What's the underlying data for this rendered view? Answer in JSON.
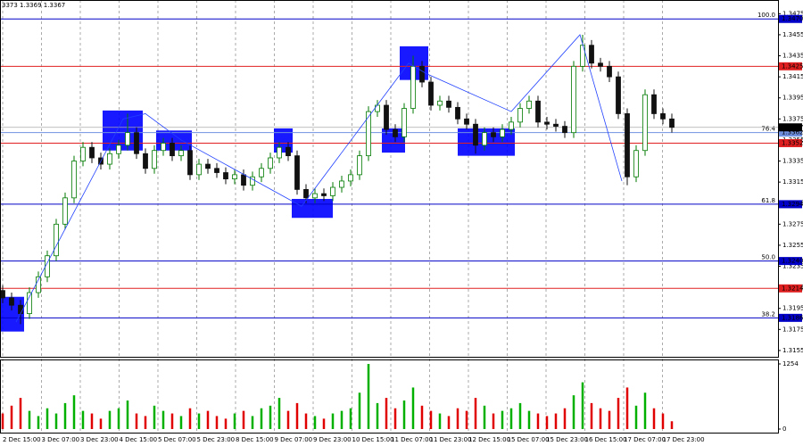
{
  "chart_data": {
    "type": "candlestick",
    "header_text": "3373 1.3369 1.3367",
    "open": [
      1.3212,
      1.3205,
      1.3198,
      1.319,
      1.321,
      1.3225,
      1.3245,
      1.3275,
      1.33,
      1.3335,
      1.3348,
      1.3338,
      1.3332,
      1.3342,
      1.335,
      1.3362,
      1.3342,
      1.3328,
      1.3345,
      1.3352,
      1.334,
      1.3345,
      1.3322,
      1.3332,
      1.3328,
      1.3324,
      1.3318,
      1.3322,
      1.3312,
      1.332,
      1.3328,
      1.3338,
      1.3348,
      1.334,
      1.3308,
      1.33,
      1.3304,
      1.3302,
      1.331,
      1.3316,
      1.3322,
      1.334,
      1.3382,
      1.3388,
      1.3365,
      1.3358,
      1.3385,
      1.3425,
      1.341,
      1.3388,
      1.3392,
      1.3386,
      1.3375,
      1.337,
      1.335,
      1.3362,
      1.3358,
      1.3365,
      1.3372,
      1.3385,
      1.3392,
      1.3372,
      1.337,
      1.3368,
      1.3362,
      1.3425,
      1.3445,
      1.3428,
      1.3425,
      1.3415,
      1.338,
      1.332,
      1.3345,
      1.3398,
      1.338,
      1.3375
    ],
    "high": [
      1.3217,
      1.321,
      1.3203,
      1.3215,
      1.323,
      1.325,
      1.328,
      1.3305,
      1.334,
      1.3353,
      1.3353,
      1.3343,
      1.3347,
      1.3355,
      1.338,
      1.3367,
      1.3347,
      1.335,
      1.3357,
      1.3357,
      1.335,
      1.335,
      1.3337,
      1.3337,
      1.3333,
      1.3329,
      1.3327,
      1.3327,
      1.3325,
      1.3333,
      1.3343,
      1.3353,
      1.3353,
      1.3345,
      1.3313,
      1.3309,
      1.3309,
      1.3315,
      1.3321,
      1.3327,
      1.3345,
      1.3387,
      1.3393,
      1.3393,
      1.337,
      1.339,
      1.3435,
      1.343,
      1.3415,
      1.3397,
      1.3397,
      1.3391,
      1.338,
      1.3375,
      1.3367,
      1.3367,
      1.337,
      1.3377,
      1.339,
      1.3397,
      1.3397,
      1.3377,
      1.3375,
      1.3373,
      1.343,
      1.3455,
      1.345,
      1.3433,
      1.343,
      1.342,
      1.3385,
      1.335,
      1.3403,
      1.3403,
      1.3385,
      1.338
    ],
    "low": [
      1.32,
      1.3193,
      1.318,
      1.3185,
      1.3205,
      1.322,
      1.324,
      1.327,
      1.3295,
      1.333,
      1.3333,
      1.3327,
      1.3327,
      1.3337,
      1.3345,
      1.3337,
      1.3323,
      1.3323,
      1.334,
      1.3335,
      1.3335,
      1.3317,
      1.3317,
      1.3323,
      1.3319,
      1.3313,
      1.3313,
      1.3307,
      1.3307,
      1.3315,
      1.3323,
      1.3333,
      1.3335,
      1.3303,
      1.3295,
      1.3295,
      1.3297,
      1.3297,
      1.3305,
      1.3311,
      1.3317,
      1.3335,
      1.3377,
      1.336,
      1.3353,
      1.3353,
      1.338,
      1.3405,
      1.3383,
      1.3383,
      1.3381,
      1.337,
      1.3365,
      1.3342,
      1.3345,
      1.3353,
      1.3353,
      1.336,
      1.3367,
      1.338,
      1.3367,
      1.3365,
      1.3363,
      1.3357,
      1.3357,
      1.342,
      1.3423,
      1.342,
      1.341,
      1.3375,
      1.3312,
      1.3315,
      1.334,
      1.3375,
      1.337,
      1.3362
    ],
    "close": [
      1.3205,
      1.3198,
      1.319,
      1.321,
      1.3225,
      1.3245,
      1.3275,
      1.33,
      1.3335,
      1.3348,
      1.3338,
      1.3332,
      1.3342,
      1.335,
      1.3362,
      1.3342,
      1.3328,
      1.3345,
      1.3352,
      1.334,
      1.3345,
      1.3322,
      1.3332,
      1.3328,
      1.3324,
      1.3318,
      1.3322,
      1.3312,
      1.332,
      1.3328,
      1.3338,
      1.3348,
      1.334,
      1.3308,
      1.33,
      1.3304,
      1.3302,
      1.331,
      1.3316,
      1.3322,
      1.334,
      1.3382,
      1.3388,
      1.3365,
      1.3358,
      1.3385,
      1.3425,
      1.341,
      1.3388,
      1.3392,
      1.3386,
      1.3375,
      1.337,
      1.335,
      1.3362,
      1.3358,
      1.3365,
      1.3372,
      1.3385,
      1.3392,
      1.3372,
      1.337,
      1.3368,
      1.3362,
      1.3425,
      1.3445,
      1.3428,
      1.3425,
      1.3415,
      1.338,
      1.332,
      1.3345,
      1.3398,
      1.338,
      1.3375,
      1.3367
    ],
    "volume": [
      300,
      450,
      600,
      350,
      250,
      400,
      300,
      500,
      650,
      350,
      300,
      200,
      350,
      400,
      550,
      300,
      250,
      450,
      350,
      300,
      250,
      400,
      300,
      350,
      250,
      200,
      300,
      350,
      250,
      400,
      450,
      600,
      350,
      500,
      300,
      250,
      200,
      300,
      350,
      400,
      700,
      1254,
      500,
      600,
      400,
      550,
      800,
      450,
      350,
      300,
      250,
      400,
      350,
      600,
      450,
      300,
      350,
      400,
      500,
      350,
      300,
      250,
      300,
      400,
      650,
      900,
      500,
      400,
      350,
      600,
      800,
      450,
      700,
      400,
      300,
      150
    ],
    "up_color": "#007a00",
    "down_color": "#111111",
    "volume_up_color": "#00b000",
    "volume_down_color": "#e00000",
    "ylim": [
      1.3149,
      1.3488
    ],
    "yticks": [
      1.3475,
      1.3455,
      1.3435,
      1.3415,
      1.3395,
      1.3375,
      1.3355,
      1.3335,
      1.3315,
      1.3295,
      1.3275,
      1.3255,
      1.3235,
      1.3215,
      1.3195,
      1.3175,
      1.3155
    ],
    "vlim": [
      0,
      1254
    ],
    "vticks": [
      1254,
      0
    ],
    "xlim": [
      -0.3,
      86.9
    ],
    "xticks": [
      {
        "value": 0,
        "label": "2 Dec 15:00"
      },
      {
        "value": 4.35,
        "label": "3 Dec 07:00"
      },
      {
        "value": 8.7,
        "label": "3 Dec 23:00"
      },
      {
        "value": 13.05,
        "label": "4 Dec 15:00"
      },
      {
        "value": 17.4,
        "label": "5 Dec 07:00"
      },
      {
        "value": 21.75,
        "label": "5 Dec 23:00"
      },
      {
        "value": 26.1,
        "label": "8 Dec 15:00"
      },
      {
        "value": 30.45,
        "label": "9 Dec 07:00"
      },
      {
        "value": 34.8,
        "label": "9 Dec 23:00"
      },
      {
        "value": 39.15,
        "label": "10 Dec 15:00"
      },
      {
        "value": 43.5,
        "label": "11 Dec 07:00"
      },
      {
        "value": 47.85,
        "label": "11 Dec 23:00"
      },
      {
        "value": 52.2,
        "label": "12 Dec 15:00"
      },
      {
        "value": 56.55,
        "label": "15 Dec 07:00"
      },
      {
        "value": 60.9,
        "label": "15 Dec 23:00"
      },
      {
        "value": 65.25,
        "label": "16 Dec 15:00"
      },
      {
        "value": 69.6,
        "label": "17 Dec 07:00"
      },
      {
        "value": 73.95,
        "label": "17 Dec 23:00"
      }
    ],
    "grid": true,
    "levels": [
      {
        "value": 1.347,
        "label": "1.3470",
        "color": "#0000c8",
        "fib": "100.0"
      },
      {
        "value": 1.3425,
        "color": "#e02020"
      },
      {
        "value": 1.3362,
        "color": "#7090e0",
        "fib": "76.4"
      },
      {
        "value": 1.3352,
        "color": "#e02020"
      },
      {
        "value": 1.3294,
        "color": "#0000c8",
        "fib": "61.8"
      },
      {
        "value": 1.324,
        "label": "1.3240",
        "color": "#0000c8",
        "fib": "50.0"
      },
      {
        "value": 1.3214,
        "color": "#e02020"
      },
      {
        "value": 1.3186,
        "color": "#0000c8",
        "fib": "38.2"
      }
    ],
    "current_price": 1.3367,
    "current_color": "#000000",
    "zones": [
      {
        "x": [
          -0.3,
          2.4
        ],
        "y": [
          1.3173,
          1.3206
        ]
      },
      {
        "x": [
          11.2,
          15.7
        ],
        "y": [
          1.3345,
          1.3383
        ]
      },
      {
        "x": [
          17.2,
          21.2
        ],
        "y": [
          1.3345,
          1.3364
        ]
      },
      {
        "x": [
          30.4,
          32.5
        ],
        "y": [
          1.3343,
          1.3366
        ]
      },
      {
        "x": [
          32.4,
          37
        ],
        "y": [
          1.3281,
          1.3299
        ]
      },
      {
        "x": [
          42.5,
          45.1
        ],
        "y": [
          1.3343,
          1.3366
        ]
      },
      {
        "x": [
          44.5,
          47.7
        ],
        "y": [
          1.3412,
          1.3444
        ]
      },
      {
        "x": [
          51,
          57.4
        ],
        "y": [
          1.334,
          1.3366
        ]
      }
    ],
    "zone_color": "#0000ff",
    "wave": {
      "x": [
        1.5,
        13.5,
        16,
        20,
        33.5,
        45.5,
        47.5,
        57,
        64.7,
        69.4
      ],
      "y": [
        1.3182,
        1.3375,
        1.338,
        1.3355,
        1.3292,
        1.3428,
        1.3418,
        1.3382,
        1.3455,
        1.3316
      ]
    },
    "wave_color": "#2040ff"
  }
}
